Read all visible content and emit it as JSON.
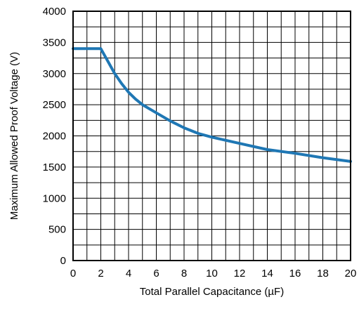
{
  "chart_data": {
    "type": "line",
    "title": "",
    "xlabel": "Total Parallel Capacitance (µF)",
    "ylabel": "Maximum Allowed Proof Voltage (V)",
    "xlim": [
      0,
      20
    ],
    "ylim": [
      0,
      4000
    ],
    "x_ticks": [
      0,
      2,
      4,
      6,
      8,
      10,
      12,
      14,
      16,
      18,
      20
    ],
    "y_ticks": [
      0,
      500,
      1000,
      1500,
      2000,
      2500,
      3000,
      3500,
      4000
    ],
    "grid": true,
    "legend": "none",
    "series": [
      {
        "color": "#1f77b4",
        "x": [
          0,
          2.0,
          2.5,
          3,
          3.5,
          4,
          4.5,
          5,
          6,
          7,
          8,
          9,
          10,
          12,
          14,
          16,
          18,
          20
        ],
        "y": [
          3400,
          3400,
          3200,
          3000,
          2840,
          2700,
          2590,
          2500,
          2370,
          2240,
          2130,
          2040,
          1980,
          1880,
          1780,
          1720,
          1650,
          1590
        ]
      }
    ]
  }
}
